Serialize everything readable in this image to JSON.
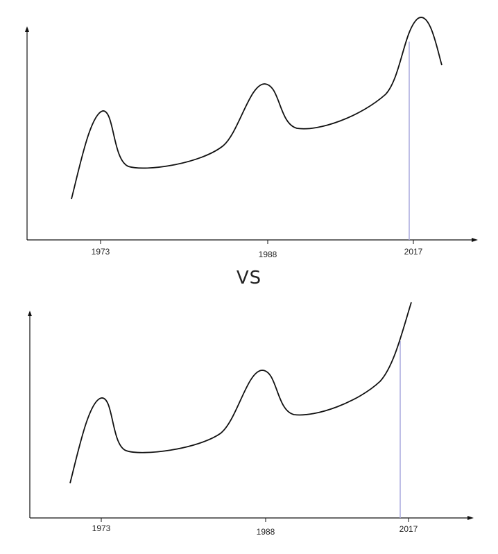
{
  "separator": "VS",
  "chart_data": [
    {
      "type": "line",
      "title": "",
      "xlabel": "",
      "ylabel": "",
      "x_ticks": [
        "1973",
        "1988",
        "2017"
      ],
      "marker_at": "2017",
      "series": [
        {
          "values": [
            [
              1969,
              0.16
            ],
            [
              1971,
              0.45
            ],
            [
              1973,
              0.62
            ],
            [
              1975,
              0.35
            ],
            [
              1978,
              0.33
            ],
            [
              1983,
              0.38
            ],
            [
              1986,
              0.5
            ],
            [
              1988,
              0.72
            ],
            [
              1990,
              0.53
            ],
            [
              1995,
              0.56
            ],
            [
              2000,
              0.6
            ],
            [
              2012,
              0.7
            ],
            [
              2016,
              0.86
            ],
            [
              2018,
              1.0
            ],
            [
              2020,
              0.83
            ]
          ]
        }
      ],
      "axes": {
        "y": "arrow",
        "x": "arrow"
      },
      "line_color": "#111111",
      "marker_color": "#a9a9dd"
    },
    {
      "type": "line",
      "title": "",
      "xlabel": "",
      "ylabel": "",
      "x_ticks": [
        "1973",
        "1988",
        "2017"
      ],
      "marker_at": "2017",
      "series": [
        {
          "values": [
            [
              1969,
              0.15
            ],
            [
              1971,
              0.42
            ],
            [
              1973,
              0.57
            ],
            [
              1975,
              0.32
            ],
            [
              1978,
              0.3
            ],
            [
              1983,
              0.35
            ],
            [
              1986,
              0.48
            ],
            [
              1988,
              0.68
            ],
            [
              1990,
              0.5
            ],
            [
              1995,
              0.53
            ],
            [
              2000,
              0.57
            ],
            [
              2012,
              0.66
            ],
            [
              2016,
              0.82
            ],
            [
              2019,
              1.0
            ]
          ]
        }
      ],
      "axes": {
        "y": "arrow",
        "x": "arrow"
      },
      "line_color": "#111111",
      "marker_color": "#a9a9dd"
    }
  ]
}
